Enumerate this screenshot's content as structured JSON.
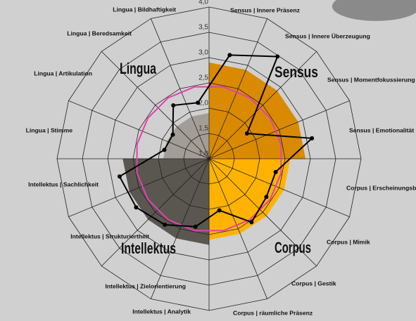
{
  "chart_data": {
    "type": "radar",
    "categories": [
      "Sensus | Innere Präsenz",
      "Sensus | Innere Überzeugung",
      "Sensus | Momentfokussierung",
      "Sensus | Emotionalität",
      "Corpus | Erscheinungsbild",
      "Corpus | Mimik",
      "Corpus | Gestik",
      "Corpus | räumliche Präsenz",
      "Intellektus | Analytik",
      "Intellektus | Zielorientierung",
      "Intellektus | Strukturiertheit",
      "Intellektus | Sachlichkeit",
      "Lingua | Stimme",
      "Lingua | Artikulation",
      "Lingua | Beredsamkeit",
      "Lingua | Bildhaftigkeit"
    ],
    "groups": [
      "Sensus",
      "Corpus",
      "Intellektus",
      "Lingua"
    ],
    "series": [
      {
        "kind": "area",
        "values": [
          2.9,
          2.9,
          2.9,
          2.9,
          2.6,
          2.6,
          2.6,
          2.6,
          2.7,
          2.7,
          2.7,
          2.7,
          1.9,
          1.9,
          1.9,
          1.9
        ],
        "colors": [
          "#d98a00",
          "#d98a00",
          "#d98a00",
          "#d98a00",
          "#ffb300",
          "#ffb300",
          "#ffb300",
          "#ffb300",
          "#5a5650",
          "#5a5650",
          "#5a5650",
          "#5a5650",
          "#a39d97",
          "#a39d97",
          "#a39d97",
          "#a39d97"
        ]
      },
      {
        "kind": "line",
        "color": "#e83fb0",
        "values": [
          2.45,
          2.45,
          2.45,
          2.45,
          2.45,
          2.45,
          2.45,
          2.45,
          2.45,
          2.45,
          2.45,
          2.45,
          2.45,
          2.45,
          2.45,
          2.45
        ]
      },
      {
        "kind": "line",
        "color": "#000000",
        "markers": true,
        "values": [
          3.09,
          3.43,
          1.9,
          3.07,
          2.34,
          2.36,
          2.51,
          2.04,
          2.37,
          2.57,
          2.73,
          2.8,
          1.9,
          1.86,
          2.27,
          2.13
        ]
      }
    ],
    "ylim": [
      1,
      4
    ],
    "yticks": [
      {
        "value": 1,
        "label": "1,0"
      },
      {
        "value": 1.5,
        "label": "1,5"
      },
      {
        "value": 2,
        "label": "2,0"
      },
      {
        "value": 2.5,
        "label": "2,5"
      },
      {
        "value": 3,
        "label": "3,0"
      },
      {
        "value": 3.5,
        "label": "3,5"
      },
      {
        "value": 4,
        "label": "4,0"
      }
    ],
    "grid": true
  }
}
